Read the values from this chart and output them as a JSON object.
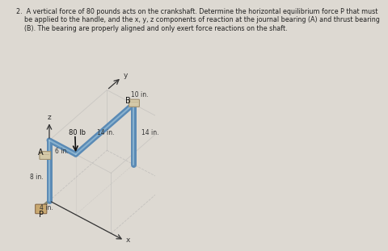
{
  "title_text": "2.  A vertical force of 80 pounds acts on the crankshaft. Determine the horizontal equilibrium force P that must\n    be applied to the handle, and the x, y, z components of reaction at the journal bearing (A) and thrust bearing\n    (B). The bearing are properly aligned and only exert force reactions on the shaft.",
  "title_fontsize": 5.8,
  "title_color": "#222222",
  "fig_bg": "#ddd9d2",
  "force_label": "80 lb",
  "shaft_color": "#5a8ab5",
  "shaft_highlight": "#a8cce0",
  "bearing_face": "#d4c9a8",
  "bearing_edge": "#a09070",
  "handle_color": "#c8a870",
  "grid_color": "#aaaaaa",
  "label_A": "A",
  "label_B": "B",
  "label_P": "P",
  "label_x": "x",
  "label_y": "y",
  "label_z": "z",
  "lw_shaft": 5.0,
  "lw_grid": 0.6
}
